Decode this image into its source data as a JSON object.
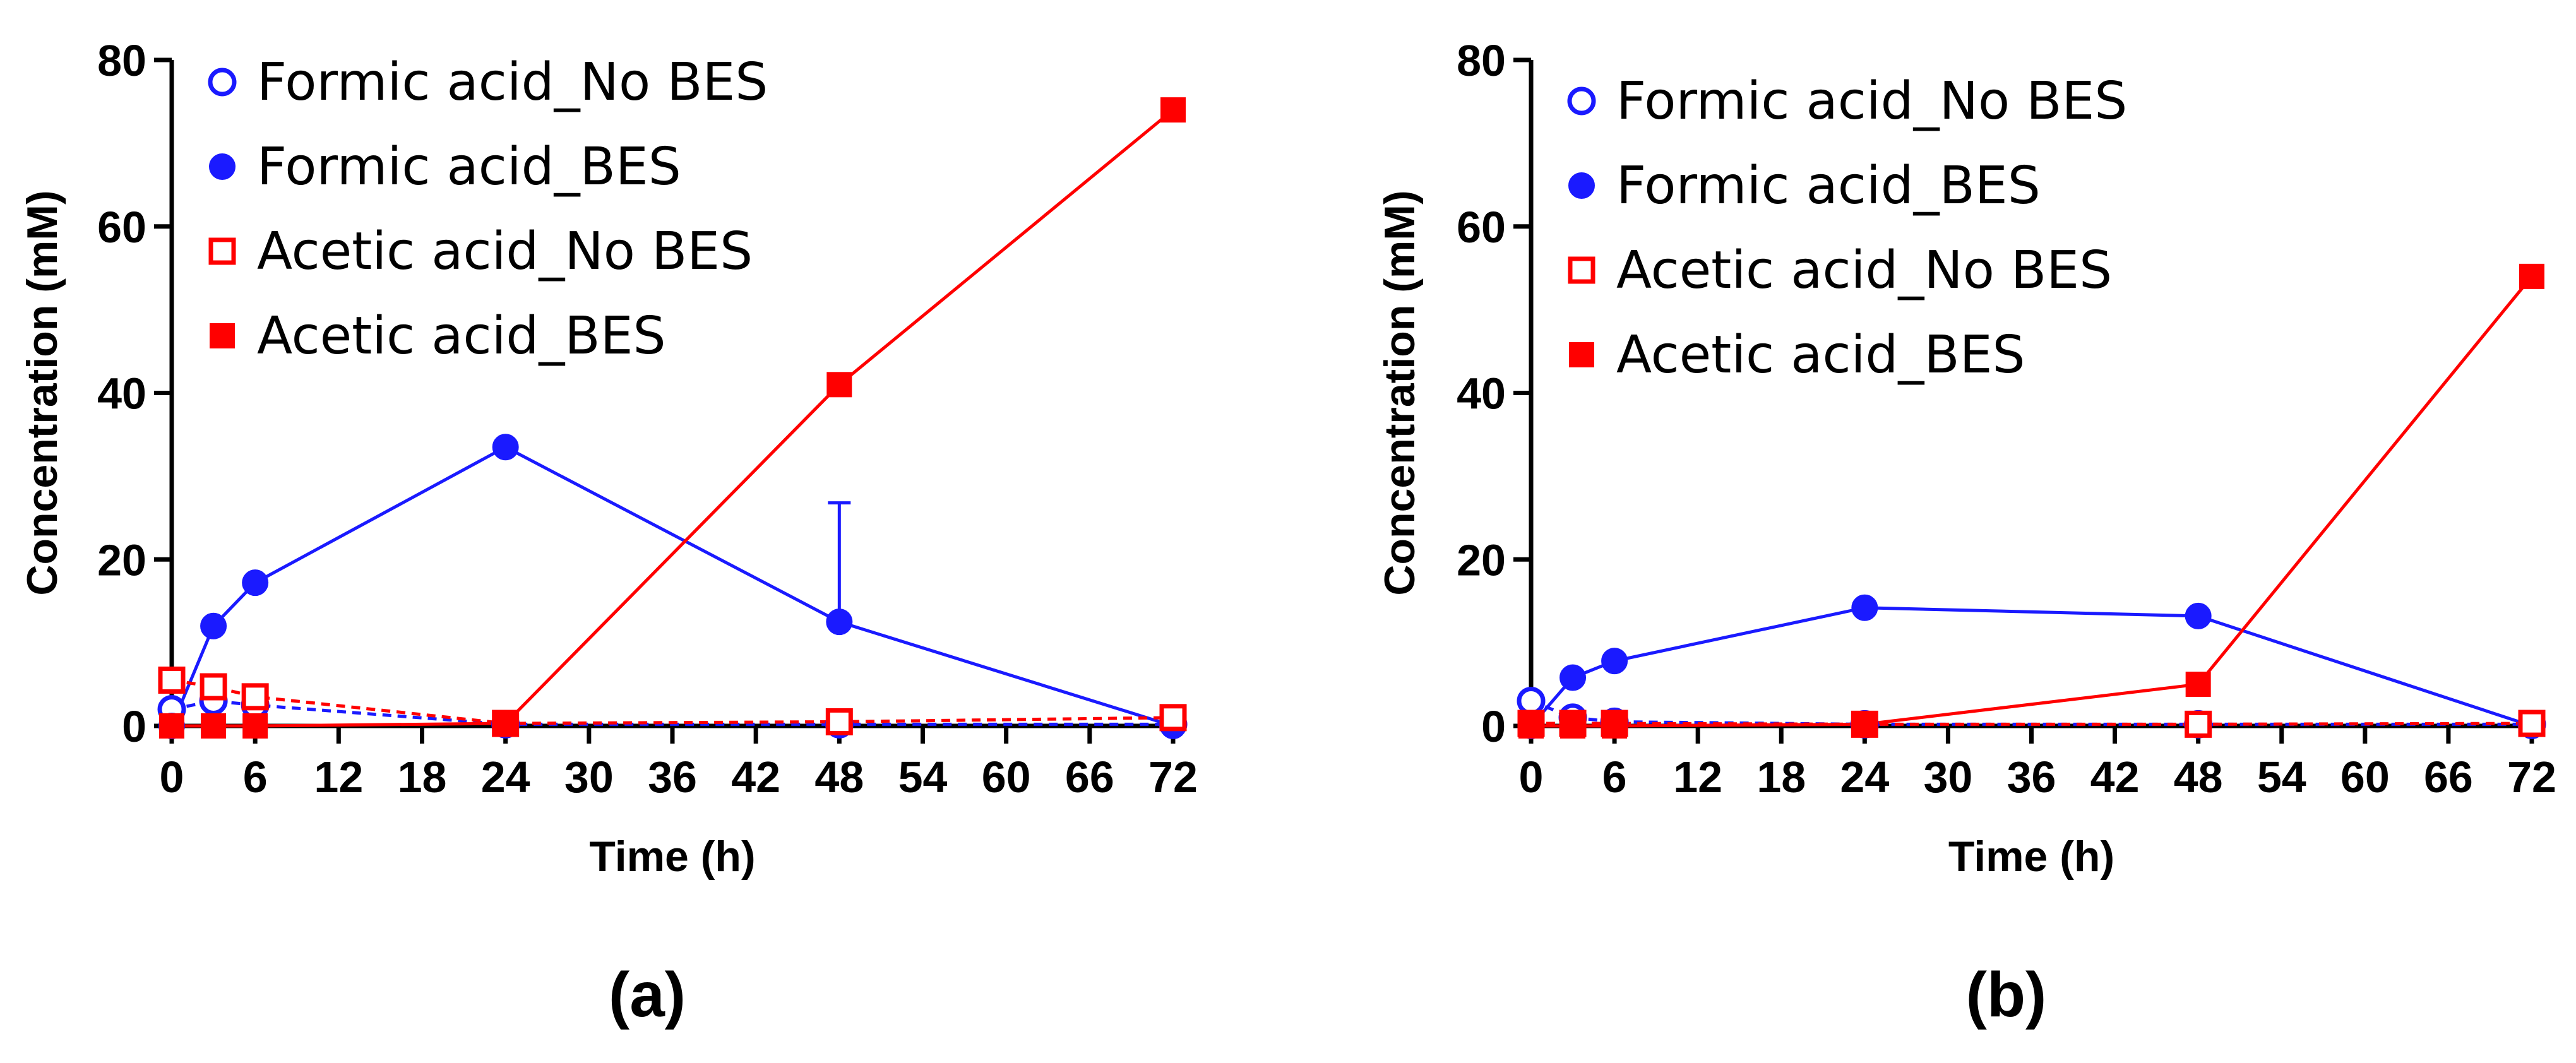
{
  "chart_data": [
    {
      "type": "line",
      "panel_label": "(a)",
      "xlabel": "Time (h)",
      "ylabel": "Concentration (mM)",
      "xlim": [
        0,
        72
      ],
      "ylim": [
        0,
        80
      ],
      "xticks": [
        0,
        6,
        12,
        18,
        24,
        30,
        36,
        42,
        48,
        54,
        60,
        66,
        72
      ],
      "yticks": [
        0,
        20,
        40,
        60,
        80
      ],
      "legend_position": "top-left",
      "series": [
        {
          "name": "Formic acid_No BES",
          "color": "#1a1aff",
          "marker": "circle",
          "filled": false,
          "dashed": true,
          "x": [
            0,
            3,
            6,
            24,
            48,
            72
          ],
          "values": [
            2,
            3,
            2.5,
            0.2,
            0.2,
            0.2
          ],
          "errors": [
            0,
            0,
            0,
            0,
            0,
            0
          ]
        },
        {
          "name": "Formic acid_BES",
          "color": "#1a1aff",
          "marker": "circle",
          "filled": true,
          "dashed": false,
          "x": [
            0,
            3,
            6,
            24,
            48,
            72
          ],
          "values": [
            0,
            12,
            17.2,
            33.5,
            12.5,
            0
          ],
          "errors": [
            0,
            0,
            0,
            0,
            14.3,
            0
          ]
        },
        {
          "name": "Acetic acid_No BES",
          "color": "#ff0000",
          "marker": "square",
          "filled": false,
          "dashed": true,
          "x": [
            0,
            3,
            6,
            24,
            48,
            72
          ],
          "values": [
            5.5,
            4.7,
            3.5,
            0.3,
            0.5,
            1
          ],
          "errors": [
            0,
            0,
            0,
            0,
            0,
            0
          ]
        },
        {
          "name": "Acetic acid_BES",
          "color": "#ff0000",
          "marker": "square",
          "filled": true,
          "dashed": false,
          "x": [
            0,
            3,
            6,
            24,
            48,
            72
          ],
          "values": [
            0,
            0,
            0,
            0.3,
            41,
            74
          ],
          "errors": [
            0,
            0,
            0,
            0,
            0,
            0
          ]
        }
      ]
    },
    {
      "type": "line",
      "panel_label": "(b)",
      "xlabel": "Time (h)",
      "ylabel": "Concentration (mM)",
      "xlim": [
        0,
        72
      ],
      "ylim": [
        0,
        80
      ],
      "xticks": [
        0,
        6,
        12,
        18,
        24,
        30,
        36,
        42,
        48,
        54,
        60,
        66,
        72
      ],
      "yticks": [
        0,
        20,
        40,
        60,
        80
      ],
      "legend_position": "top-left",
      "series": [
        {
          "name": "Formic acid_No BES",
          "color": "#1a1aff",
          "marker": "circle",
          "filled": false,
          "dashed": true,
          "x": [
            0,
            3,
            6,
            24,
            48,
            72
          ],
          "values": [
            3,
            1,
            0.5,
            0.2,
            0.2,
            0.2
          ],
          "errors": [
            0,
            0,
            0,
            0,
            0,
            0
          ]
        },
        {
          "name": "Formic acid_BES",
          "color": "#1a1aff",
          "marker": "circle",
          "filled": true,
          "dashed": false,
          "x": [
            0,
            3,
            6,
            24,
            48,
            72
          ],
          "values": [
            0,
            5.8,
            7.8,
            14.2,
            13.2,
            0
          ],
          "errors": [
            0,
            0,
            0,
            0,
            0,
            0
          ]
        },
        {
          "name": "Acetic acid_No BES",
          "color": "#ff0000",
          "marker": "square",
          "filled": false,
          "dashed": true,
          "x": [
            0,
            3,
            6,
            24,
            48,
            72
          ],
          "values": [
            0.3,
            0.3,
            0.3,
            0.2,
            0.2,
            0.3
          ],
          "errors": [
            0,
            0,
            0,
            0,
            0,
            0
          ]
        },
        {
          "name": "Acetic acid_BES",
          "color": "#ff0000",
          "marker": "square",
          "filled": true,
          "dashed": false,
          "x": [
            0,
            3,
            6,
            24,
            48,
            72
          ],
          "values": [
            0,
            0,
            0,
            0.2,
            5,
            54
          ],
          "errors": [
            0,
            0,
            0,
            0,
            0,
            0
          ]
        }
      ]
    }
  ]
}
